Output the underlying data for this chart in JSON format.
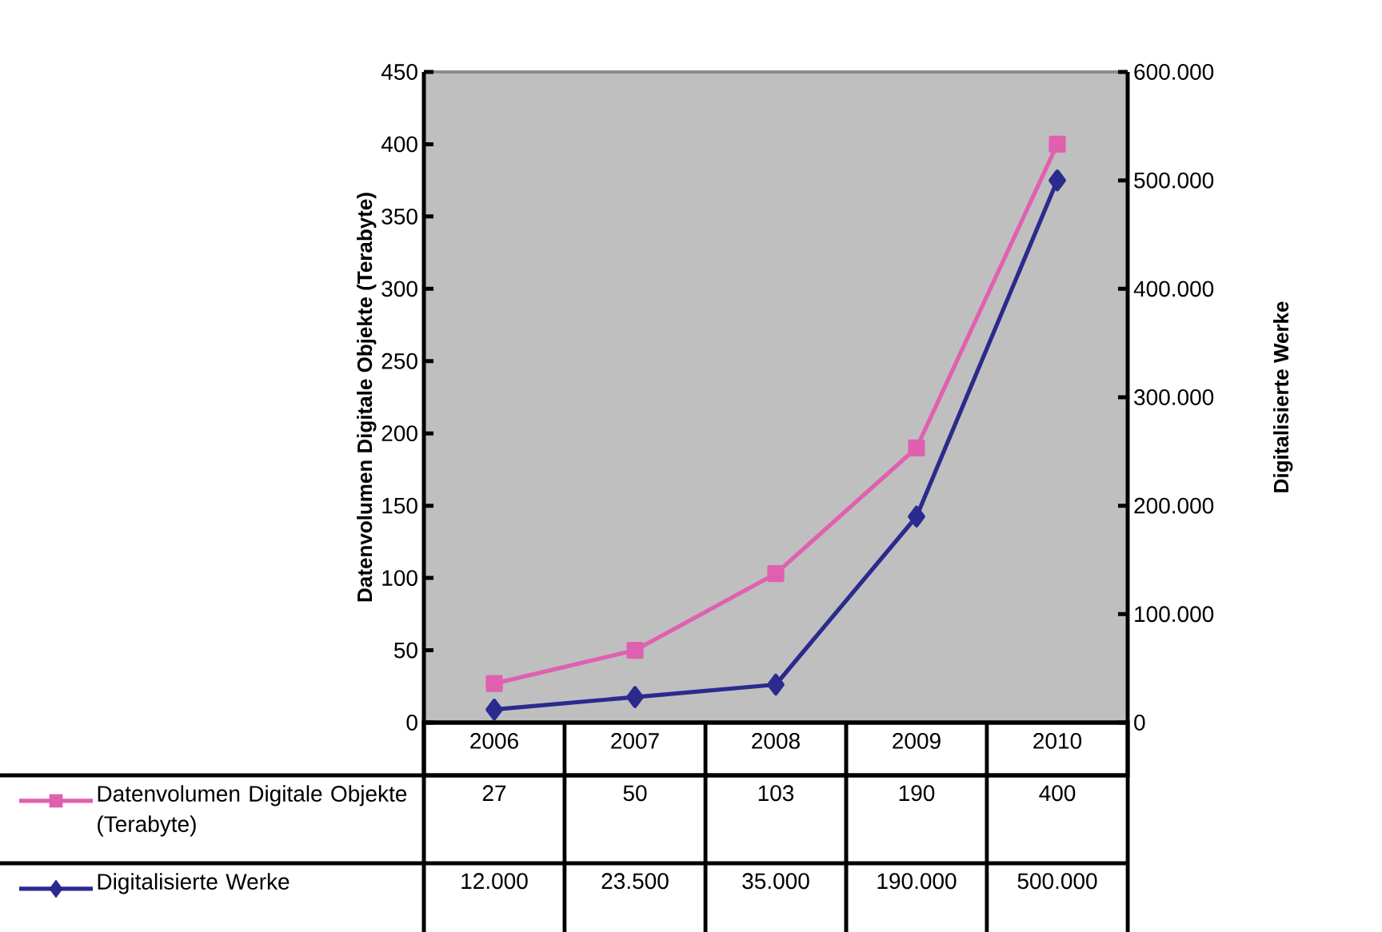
{
  "chart_data": {
    "type": "line",
    "ylabel": "Datenvolumen Digitale Objekte (Terabyte)",
    "y2label": "Digitalisierte Werke",
    "categories": [
      "2006",
      "2007",
      "2008",
      "2009",
      "2010"
    ],
    "ylim": [
      0,
      450
    ],
    "yticks": [
      0,
      50,
      100,
      150,
      200,
      250,
      300,
      350,
      400,
      450
    ],
    "y2lim": [
      0,
      600000
    ],
    "y2ticks": [
      0,
      {
        "value": 100000,
        "label": "100.000"
      },
      {
        "value": 200000,
        "label": "200.000"
      },
      {
        "value": 300000,
        "label": "300.000"
      },
      {
        "value": 400000,
        "label": "400.000"
      },
      {
        "value": 500000,
        "label": "500.000"
      },
      {
        "value": 600000,
        "label": "600.000"
      }
    ],
    "legend": "bottom",
    "series": [
      {
        "name": "Datenvolumen Digitale Objekte (Terabyte)",
        "color": "#e060b0",
        "marker": "square",
        "values": [
          27,
          50,
          103,
          190,
          400
        ],
        "value_labels": [
          "27",
          "50",
          "103",
          "190",
          "400"
        ]
      },
      {
        "name": "Digitalisierte Werke",
        "color": "#2b2a8e",
        "marker": "diamond",
        "axis": "y2",
        "values": [
          12000,
          23500,
          35000,
          190000,
          500000
        ],
        "value_labels": [
          "12.000",
          "23.500",
          "35.000",
          "190.000",
          "500.000"
        ]
      }
    ]
  }
}
